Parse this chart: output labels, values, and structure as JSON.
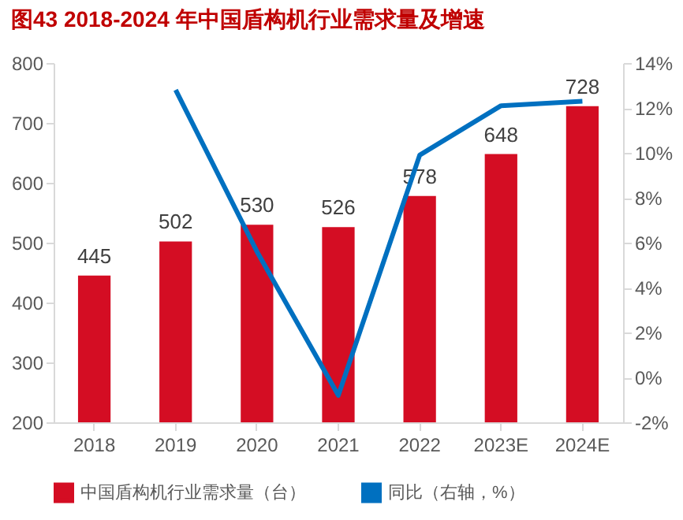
{
  "chart_data": {
    "type": "bar",
    "title": "图43  2018-2024 年中国盾构机行业需求量及增速",
    "categories": [
      "2018",
      "2019",
      "2020",
      "2021",
      "2022",
      "2023E",
      "2024E"
    ],
    "series": [
      {
        "name": "中国盾构机行业需求量（台）",
        "color": "#d40d23",
        "values": [
          445,
          502,
          530,
          526,
          578,
          648,
          728
        ],
        "value_labels": [
          "445",
          "502",
          "530",
          "526",
          "578",
          "648",
          "728"
        ]
      },
      {
        "name": "同比（右轴，%）",
        "type": "line",
        "axis": "y2",
        "color": "#0070c0",
        "values": [
          null,
          12.8,
          5.6,
          -0.8,
          9.9,
          12.1,
          12.3
        ]
      }
    ],
    "ylim": [
      200,
      800
    ],
    "yticks": [
      200,
      300,
      400,
      500,
      600,
      700,
      800
    ],
    "y2lim": [
      -2,
      14
    ],
    "y2ticks": [
      {
        "value": -2,
        "label": "-2%"
      },
      {
        "value": 0,
        "label": "0%"
      },
      {
        "value": 2,
        "label": "2%"
      },
      {
        "value": 4,
        "label": "4%"
      },
      {
        "value": 6,
        "label": "6%"
      },
      {
        "value": 8,
        "label": "8%"
      },
      {
        "value": 10,
        "label": "10%"
      },
      {
        "value": 12,
        "label": "12%"
      },
      {
        "value": 14,
        "label": "14%"
      }
    ],
    "legend": "bottom",
    "marker": "none"
  }
}
